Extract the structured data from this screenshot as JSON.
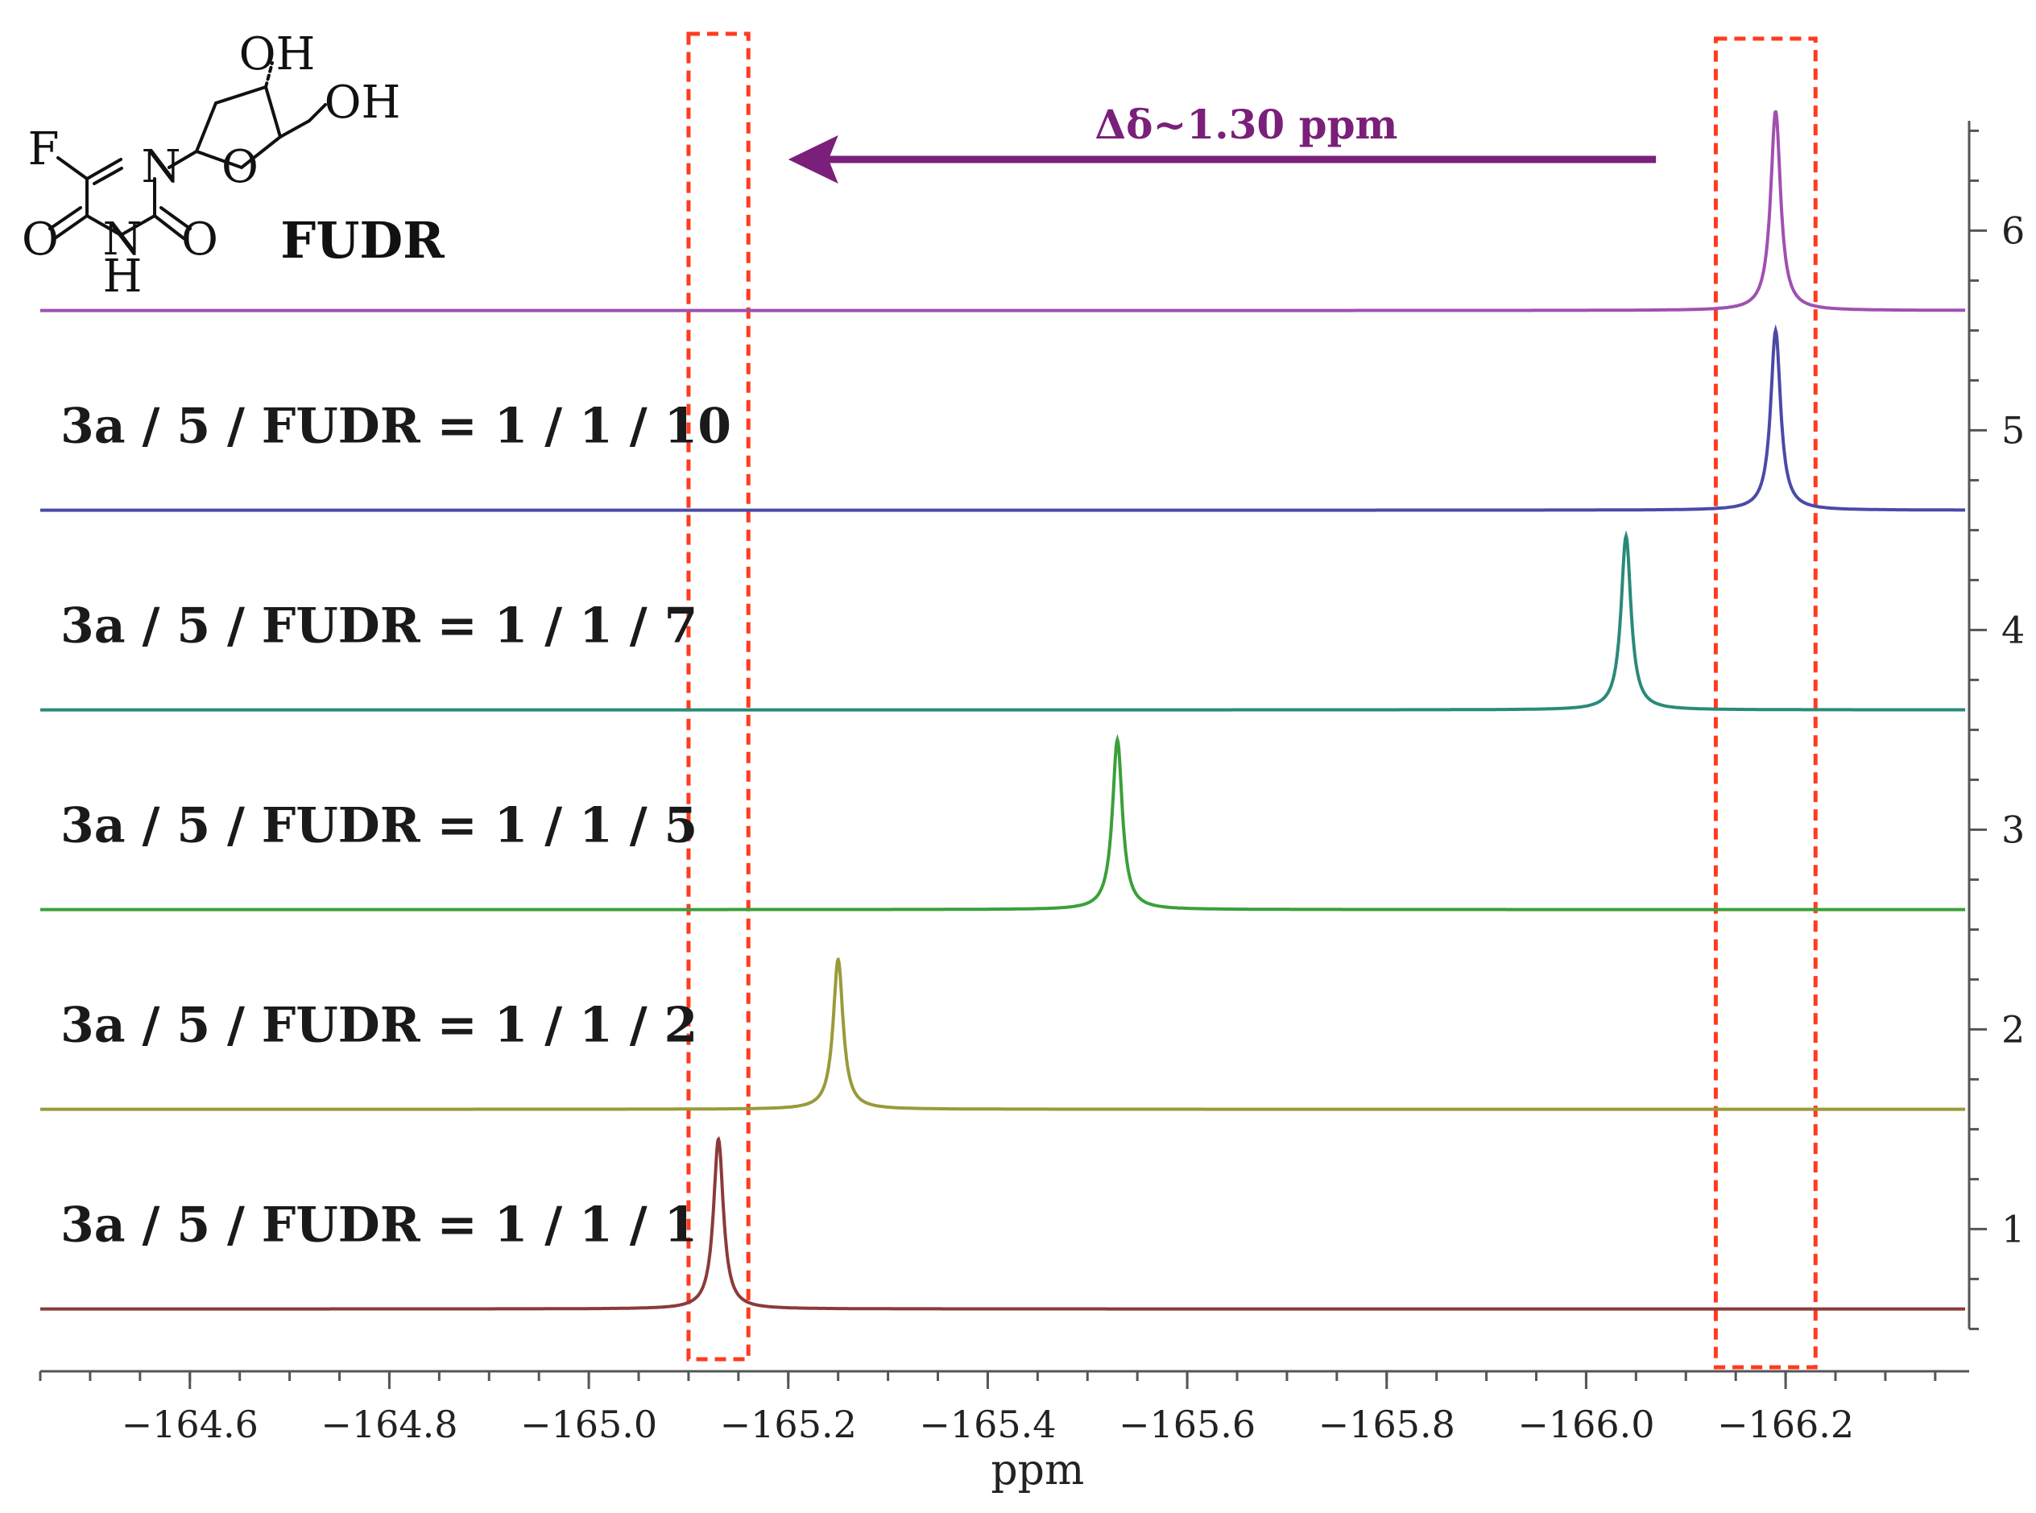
{
  "chart_data": {
    "type": "line",
    "title": "",
    "xlabel": "ppm",
    "ylabel": "",
    "x_reversed": true,
    "xlim": [
      -164.45,
      -166.38
    ],
    "x_ticks": [
      -164.6,
      -164.8,
      -165.0,
      -165.2,
      -165.4,
      -165.6,
      -165.8,
      -166.0,
      -166.2
    ],
    "x_tick_labels": [
      "−164.6",
      "−164.8",
      "−165.0",
      "−165.2",
      "−165.4",
      "−165.6",
      "−165.8",
      "−166.0",
      "−166.2"
    ],
    "ylim": [
      0.3,
      6.55
    ],
    "y_ticks": [
      1,
      2,
      3,
      4,
      5,
      6
    ],
    "y_tick_labels": [
      "1",
      "2",
      "3",
      "4",
      "5",
      "6"
    ],
    "grid": false,
    "series": [
      {
        "name": "3a / 5 / FUDR = 1 / 1 / 1",
        "peak_ppm": -165.13,
        "baseline": 0.6,
        "peak_top": 1.45,
        "color": "#8b3a3a"
      },
      {
        "name": "3a / 5 / FUDR = 1 / 1 / 2",
        "peak_ppm": -165.25,
        "baseline": 1.6,
        "peak_top": 2.35,
        "color": "#9a9a3a"
      },
      {
        "name": "3a / 5 / FUDR = 1 / 1 / 5",
        "peak_ppm": -165.53,
        "baseline": 2.6,
        "peak_top": 3.45,
        "color": "#3aa03a"
      },
      {
        "name": "3a / 5 / FUDR = 1 / 1 / 7",
        "peak_ppm": -166.04,
        "baseline": 3.6,
        "peak_top": 4.47,
        "color": "#2a8a7a"
      },
      {
        "name": "3a / 5 / FUDR = 1 / 1 / 10",
        "peak_ppm": -166.19,
        "baseline": 4.6,
        "peak_top": 5.5,
        "color": "#4a4aa8"
      },
      {
        "name": "FUDR",
        "peak_ppm": -166.19,
        "baseline": 5.6,
        "peak_top": 6.6,
        "color": "#a050b0"
      }
    ],
    "annotations": {
      "shift_label": "Δδ~1.30 ppm",
      "shift_color": "#7a1f7a",
      "shift_arrow_from_ppm": -166.07,
      "shift_arrow_to_ppm": -165.2,
      "highlight_boxes_ppm": [
        [
          -165.1,
          -165.16
        ],
        [
          -166.13,
          -166.23
        ]
      ],
      "highlight_color": "#ff3b1f"
    }
  },
  "structure": {
    "name": "FUDR",
    "atoms": {
      "oh_top": "OH",
      "oh_side": "OH",
      "f": "F",
      "n1": "N",
      "n3": "N",
      "h": "H",
      "o_ring": "O",
      "o_left": "O",
      "o_right": "O"
    }
  }
}
